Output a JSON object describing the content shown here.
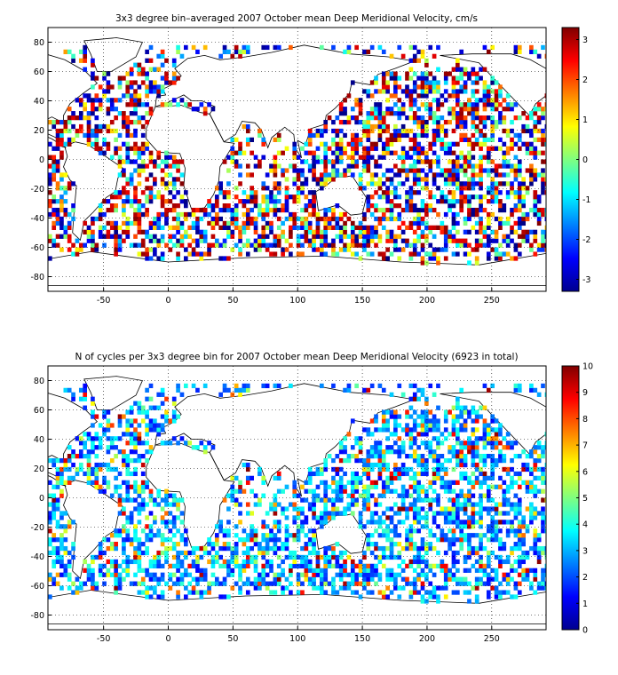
{
  "chart_data": [
    {
      "type": "heatmap",
      "title": "3x3 degree bin–averaged 2007 October mean Deep Meridional Velocity, cm/s",
      "x_ticks": [
        -50,
        0,
        50,
        100,
        150,
        200,
        250
      ],
      "y_ticks": [
        80,
        60,
        40,
        20,
        0,
        -20,
        -40,
        -60,
        -80
      ],
      "xlim": [
        -93,
        292
      ],
      "ylim": [
        -90,
        90
      ],
      "grid": true,
      "bin_size_deg": 3,
      "colorbar": {
        "min": -3.3,
        "max": 3.3,
        "ticks": [
          3,
          2,
          1,
          0,
          -1,
          -2,
          -3
        ],
        "colormap": "jet"
      },
      "coverage": "scattered ocean bins; dense in N and S Pacific, N Atlantic, Southern Ocean; values range about -3.3 to 3.3 cm/s"
    },
    {
      "type": "heatmap",
      "title": "N of cycles per 3x3 degree bin for 2007 October mean Deep Meridional Velocity (6923 in total)",
      "x_ticks": [
        -50,
        0,
        50,
        100,
        150,
        200,
        250
      ],
      "y_ticks": [
        80,
        60,
        40,
        20,
        0,
        -20,
        -40,
        -60,
        -80
      ],
      "xlim": [
        -93,
        292
      ],
      "ylim": [
        -90,
        90
      ],
      "grid": true,
      "bin_size_deg": 3,
      "total_cycles": 6923,
      "colorbar": {
        "min": 0,
        "max": 10,
        "ticks": [
          10,
          9,
          8,
          7,
          6,
          5,
          4,
          3,
          2,
          1,
          0
        ],
        "colormap": "jet"
      },
      "coverage": "same bins as top panel; most bins 1-4 cycles, some up to 10"
    }
  ],
  "colors": {
    "background": "#ffffff",
    "axes": "#000000",
    "grid": "#000000"
  }
}
